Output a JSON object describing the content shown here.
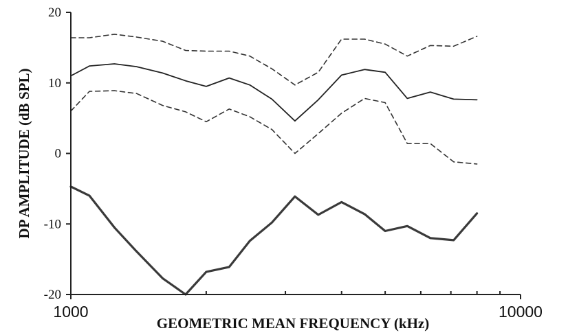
{
  "chart_data": {
    "type": "line",
    "title": "",
    "xlabel": "GEOMETRIC MEAN FREQUENCY (kHz)",
    "ylabel": "DP AMPLITUDE (dB SPL)",
    "xscale": "log",
    "xlim": [
      1000,
      10000
    ],
    "ylim": [
      -20,
      20
    ],
    "x_ticks": [
      1000,
      10000
    ],
    "x_tick_labels": [
      "1000",
      "10000"
    ],
    "y_ticks": [
      -20,
      -10,
      0,
      10,
      20
    ],
    "y_tick_labels": [
      "-20",
      "-10",
      "0",
      "10",
      "20"
    ],
    "grid": false,
    "legend": "none",
    "series": [
      {
        "style": "dashed",
        "color": "#333333",
        "x": [
          1000,
          1100,
          1250,
          1400,
          1600,
          1800,
          2000,
          2250,
          2500,
          2800,
          3150,
          3550,
          4000,
          4500,
          5000,
          5600,
          6300,
          7100,
          8000
        ],
        "y": [
          16.4,
          16.4,
          16.9,
          16.5,
          15.9,
          14.6,
          14.5,
          14.5,
          13.8,
          12.0,
          9.7,
          11.5,
          16.2,
          16.2,
          15.5,
          13.8,
          15.3,
          15.2,
          16.6
        ]
      },
      {
        "style": "solid",
        "color": "#222222",
        "x": [
          1000,
          1100,
          1250,
          1400,
          1600,
          1800,
          2000,
          2250,
          2500,
          2800,
          3150,
          3550,
          4000,
          4500,
          5000,
          5600,
          6300,
          7100,
          8000
        ],
        "y": [
          11.0,
          12.4,
          12.7,
          12.3,
          11.4,
          10.3,
          9.5,
          10.7,
          9.7,
          7.7,
          4.6,
          7.6,
          11.1,
          11.9,
          11.5,
          7.8,
          8.7,
          7.7,
          7.6
        ]
      },
      {
        "style": "dashed",
        "color": "#333333",
        "x": [
          1000,
          1100,
          1250,
          1400,
          1600,
          1800,
          2000,
          2250,
          2500,
          2800,
          3150,
          3550,
          4000,
          4500,
          5000,
          5600,
          6300,
          7100,
          8000
        ],
        "y": [
          6.0,
          8.8,
          8.9,
          8.5,
          6.8,
          5.9,
          4.5,
          6.3,
          5.2,
          3.4,
          0.0,
          2.8,
          5.7,
          7.8,
          7.2,
          1.4,
          1.4,
          -1.2,
          -1.5
        ]
      },
      {
        "style": "solid-thick",
        "color": "#3a3a3a",
        "x": [
          1000,
          1100,
          1250,
          1400,
          1600,
          1800,
          2000,
          2250,
          2500,
          2800,
          3150,
          3550,
          4000,
          4500,
          5000,
          5600,
          6300,
          7100,
          8000
        ],
        "y": [
          -4.7,
          -6.0,
          -10.5,
          -13.9,
          -17.7,
          -20.0,
          -16.8,
          -16.1,
          -12.4,
          -9.8,
          -6.1,
          -8.7,
          -6.9,
          -8.6,
          -11.0,
          -10.3,
          -12.0,
          -12.3,
          -8.5
        ]
      }
    ]
  }
}
